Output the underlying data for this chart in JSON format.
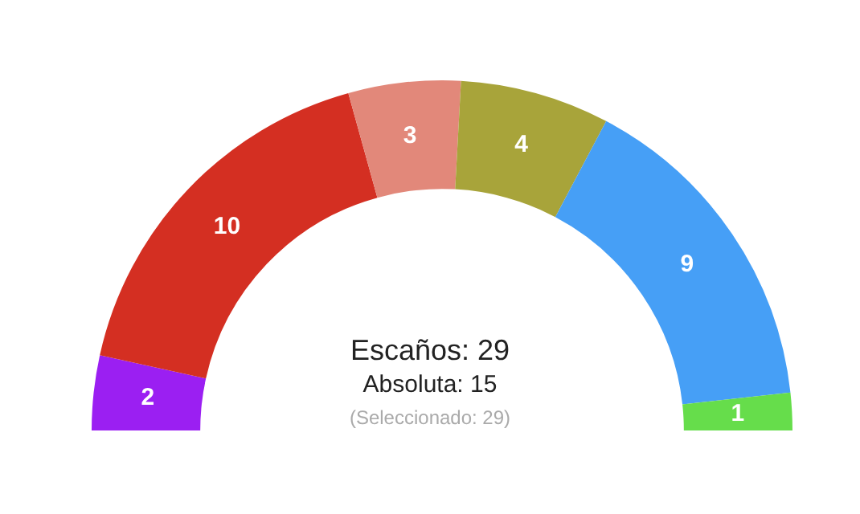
{
  "chart_data": {
    "type": "donut",
    "categories": [
      null,
      null,
      null,
      null,
      null,
      null
    ],
    "values": [
      2,
      10,
      3,
      4,
      9,
      1
    ],
    "colors": [
      "#9b1ff2",
      "#d42f22",
      "#e2887a",
      "#a8a43a",
      "#469ff6",
      "#66dd4b"
    ],
    "data_labels": true,
    "legend": false,
    "annotations": [
      "Escaños: 29",
      "Absoluta: 15",
      "(Seleccionado: 29)"
    ]
  }
}
